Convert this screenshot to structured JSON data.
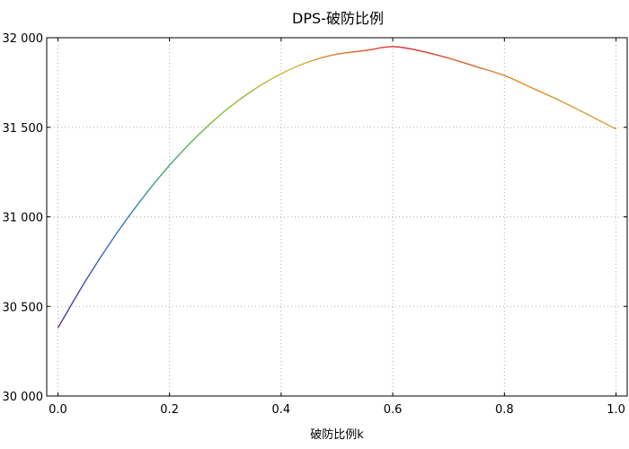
{
  "chart_data": {
    "type": "line",
    "title": "DPS-破防比例",
    "xlabel": "破防比例k",
    "ylabel": "",
    "xlim": [
      -0.02,
      1.02
    ],
    "ylim": [
      30000,
      32000
    ],
    "x_ticks": [
      0.0,
      0.2,
      0.4,
      0.6,
      0.8,
      1.0
    ],
    "x_tick_labels": [
      "0.0",
      "0.2",
      "0.4",
      "0.6",
      "0.8",
      "1.0"
    ],
    "y_ticks": [
      30000,
      30500,
      31000,
      31500,
      32000
    ],
    "y_tick_labels": [
      "30 000",
      "30 500",
      "31 000",
      "31 500",
      "32 000"
    ],
    "grid": true,
    "series": [
      {
        "x": [
          0.0,
          0.05,
          0.1,
          0.15,
          0.2,
          0.25,
          0.3,
          0.35,
          0.4,
          0.45,
          0.5,
          0.55,
          0.6,
          0.65,
          0.7,
          0.75,
          0.8,
          0.85,
          0.9,
          0.95,
          1.0
        ],
        "y": [
          30380,
          30645,
          30884,
          31098,
          31288,
          31452,
          31593,
          31708,
          31799,
          31866,
          31908,
          31928,
          31950,
          31926,
          31886,
          31838,
          31789,
          31719,
          31648,
          31570,
          31490
        ],
        "color_gradient": [
          "#5b2c91",
          "#2f6fd6",
          "#43a95f",
          "#8fbf3d",
          "#d9b23a",
          "#e06a2c",
          "#d62828",
          "#e28a2c",
          "#d9a23a"
        ]
      }
    ]
  }
}
